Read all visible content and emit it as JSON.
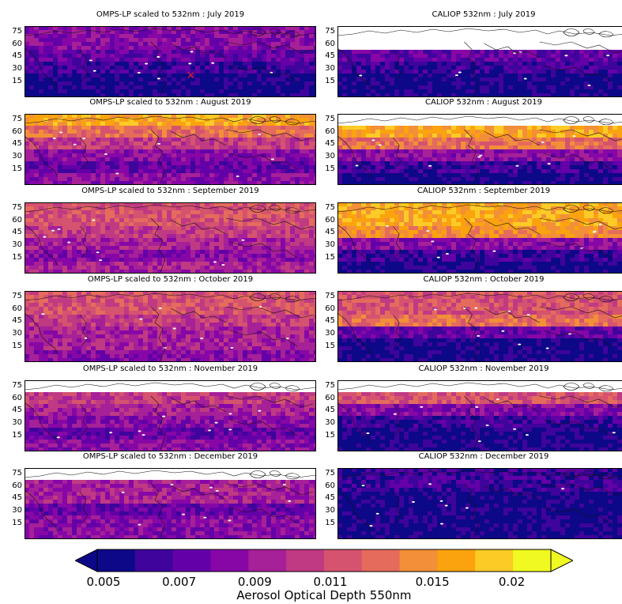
{
  "chart_data": [
    {
      "type": "heatmap",
      "title": "OMPS-LP scaled to 532nm : July 2019",
      "y_ticks": [
        "75",
        "60",
        "45",
        "30",
        "15"
      ],
      "levels": [
        3,
        3,
        2,
        1,
        0,
        0
      ],
      "marker": "x"
    },
    {
      "type": "heatmap",
      "title": "CALIOP 532nm : July 2019",
      "y_ticks": [
        "75",
        "60",
        "45",
        "30",
        "15"
      ],
      "levels": [
        -1,
        -1,
        2,
        1,
        0,
        0
      ]
    },
    {
      "type": "heatmap",
      "title": "OMPS-LP scaled to 532nm : August 2019",
      "y_ticks": [
        "75",
        "60",
        "45",
        "30",
        "15"
      ],
      "levels": [
        9,
        7,
        5,
        3,
        2,
        3
      ]
    },
    {
      "type": "heatmap",
      "title": "CALIOP 532nm : August 2019",
      "y_ticks": [
        "75",
        "60",
        "45",
        "30",
        "15"
      ],
      "levels": [
        -1,
        9,
        7,
        3,
        1,
        0
      ]
    },
    {
      "type": "heatmap",
      "title": "OMPS-LP scaled to 532nm : September 2019",
      "y_ticks": [
        "75",
        "60",
        "45",
        "30",
        "15"
      ],
      "levels": [
        6,
        6,
        5,
        4,
        3,
        4
      ]
    },
    {
      "type": "heatmap",
      "title": "CALIOP 532nm : September 2019",
      "y_ticks": [
        "75",
        "60",
        "45",
        "30",
        "15"
      ],
      "levels": [
        9,
        9,
        8,
        3,
        1,
        0
      ]
    },
    {
      "type": "heatmap",
      "title": "OMPS-LP scaled to 532nm : October 2019",
      "y_ticks": [
        "75",
        "60",
        "45",
        "30",
        "15"
      ],
      "levels": [
        6,
        6,
        5,
        4,
        4,
        3
      ]
    },
    {
      "type": "heatmap",
      "title": "CALIOP 532nm : October 2019",
      "y_ticks": [
        "75",
        "60",
        "45",
        "30",
        "15"
      ],
      "levels": [
        6,
        6,
        7,
        2,
        0,
        0
      ]
    },
    {
      "type": "heatmap",
      "title": "OMPS-LP scaled to 532nm : November 2019",
      "y_ticks": [
        "75",
        "60",
        "45",
        "30",
        "15"
      ],
      "levels": [
        -1,
        5,
        4,
        3,
        2,
        3
      ]
    },
    {
      "type": "heatmap",
      "title": "CALIOP 532nm : November 2019",
      "y_ticks": [
        "75",
        "60",
        "45",
        "30",
        "15"
      ],
      "levels": [
        -1,
        6,
        3,
        1,
        0,
        0
      ]
    },
    {
      "type": "heatmap",
      "title": "OMPS-LP scaled to 532nm : December 2019",
      "y_ticks": [
        "75",
        "60",
        "45",
        "30",
        "15"
      ],
      "levels": [
        -1,
        4,
        4,
        2,
        3,
        3
      ]
    },
    {
      "type": "heatmap",
      "title": "CALIOP 532nm : December 2019",
      "y_ticks": [
        "75",
        "60",
        "45",
        "30",
        "15"
      ],
      "levels": [
        1,
        1,
        0,
        0,
        0,
        0
      ]
    }
  ],
  "colorbar": {
    "label": "Aerosol Optical Depth 550nm",
    "ticks": [
      {
        "label": "0.005",
        "value": 0.005
      },
      {
        "label": "0.007",
        "value": 0.007
      },
      {
        "label": "0.009",
        "value": 0.009
      },
      {
        "label": "0.011",
        "value": 0.011
      },
      {
        "label": "0.015",
        "value": 0.015
      },
      {
        "label": "0.02",
        "value": 0.02
      }
    ],
    "colors": [
      "#0d0887",
      "#3e049c",
      "#6300a7",
      "#8707a6",
      "#a62098",
      "#c03a83",
      "#d5536f",
      "#e56b5d",
      "#f28f38",
      "#fba30e",
      "#fdcb26",
      "#f0f921"
    ],
    "under_color": "#0d0887",
    "over_color": "#f0f921"
  }
}
